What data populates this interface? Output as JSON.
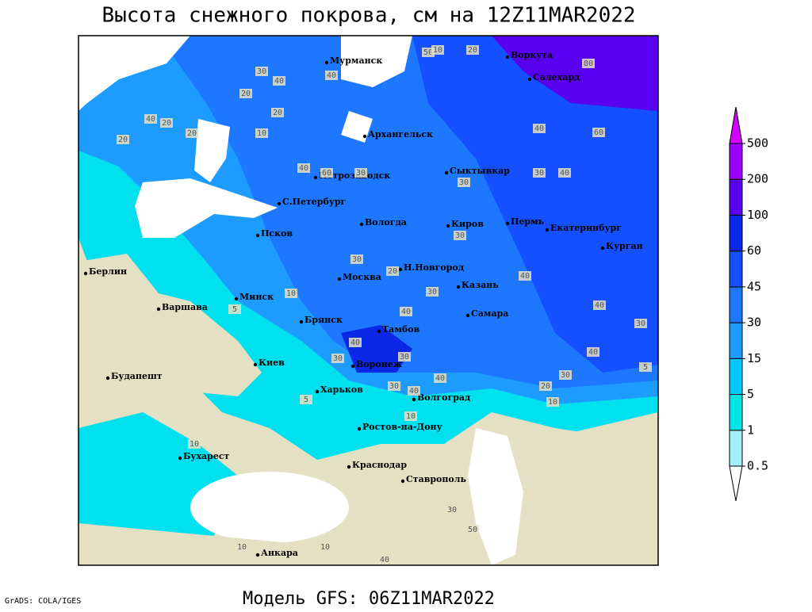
{
  "header": {
    "title": "Высота снежного покрова, см на 12Z11MAR2022"
  },
  "map": {
    "cities": [
      "Мурманск",
      "Воркута",
      "Салехард",
      "Архангельск",
      "Петрозаводск",
      "Сыктывкар",
      "С.Петербург",
      "Вологда",
      "Киров",
      "Пермь",
      "Екатеринбург",
      "Курган",
      "Псков",
      "Берлин",
      "Н.Новгород",
      "Москва",
      "Казань",
      "Минск",
      "Варшава",
      "Самара",
      "Брянск",
      "Тамбов",
      "Киев",
      "Воронеж",
      "Будапешт",
      "Харьков",
      "Волгоград",
      "Ростов-на-Дону",
      "Бухарест",
      "Краснодар",
      "Ставрополь",
      "Анкара"
    ],
    "contour_labels": [
      50,
      10,
      20,
      80,
      30,
      40,
      40,
      20,
      40,
      20,
      20,
      20,
      20,
      10,
      40,
      60,
      30,
      40,
      60,
      30,
      40,
      30,
      30,
      30,
      20,
      30,
      40,
      40,
      30,
      40,
      40,
      30,
      30,
      40,
      40,
      30,
      20,
      10,
      40,
      30,
      10,
      10,
      10,
      5,
      5,
      5,
      10,
      10,
      40,
      50,
      30
    ]
  },
  "legend": {
    "levels": [
      0.5,
      1,
      5,
      15,
      30,
      45,
      60,
      100,
      200,
      500
    ],
    "colors": [
      "#ffffff",
      "#a0f0ff",
      "#00e6e6",
      "#00c8ff",
      "#1e9bff",
      "#1e78ff",
      "#1450ff",
      "#0a28e6",
      "#5a00f0",
      "#9600ff",
      "#d200ff"
    ]
  },
  "footer": {
    "software": "GrADS: COLA/IGES",
    "model": "Модель GFS: 06Z11MAR2022"
  }
}
